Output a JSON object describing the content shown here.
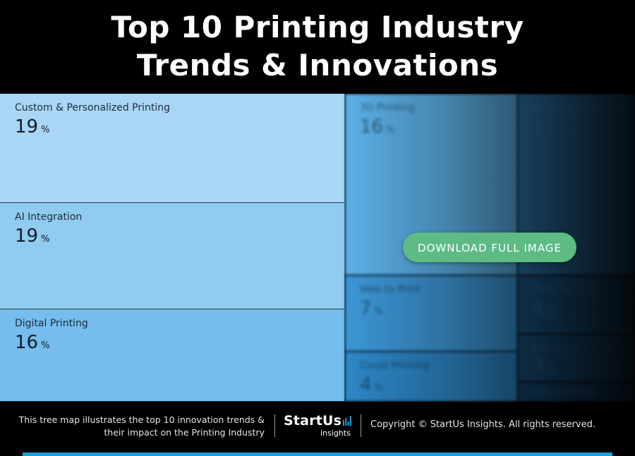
{
  "title": {
    "line1": "Top 10 Printing Industry",
    "line2": "Trends & Innovations"
  },
  "treemap": {
    "percent_symbol": "%",
    "cells": [
      {
        "label": "Custom & Personalized Printing",
        "value": "19",
        "color": "#a9d6f5"
      },
      {
        "label": "AI Integration",
        "value": "19",
        "color": "#90cbf0"
      },
      {
        "label": "Digital Printing",
        "value": "16",
        "color": "#74bdec"
      },
      {
        "label": "3D Printing",
        "value": "16",
        "color": "#5cb0e6"
      },
      {
        "label": "Sustainable Printing",
        "value": "11",
        "color": "#2f7fb9"
      },
      {
        "label": "Web to Print",
        "value": "7",
        "color": "#3c97d6"
      },
      {
        "label": "Cloud Printing",
        "value": "4",
        "color": "#2e88c8"
      },
      {
        "label": "Print Security",
        "value": "4",
        "color": "#1c5f92"
      },
      {
        "label": "Process Automation",
        "value": "3",
        "color": "#1a5788"
      },
      {
        "label": "Hybrid Printing",
        "value": "1",
        "color": "#164b78"
      }
    ]
  },
  "download_button": {
    "label": "DOWNLOAD FULL IMAGE",
    "color": "#5dbb83"
  },
  "footer": {
    "description_line1": "This tree map illustrates the top 10 innovation trends &",
    "description_line2": "their impact on the Printing Industry",
    "logo_main": "StartUs",
    "logo_sub": "insights",
    "copyright": "Copyright © StartUs Insights. All rights reserved."
  }
}
